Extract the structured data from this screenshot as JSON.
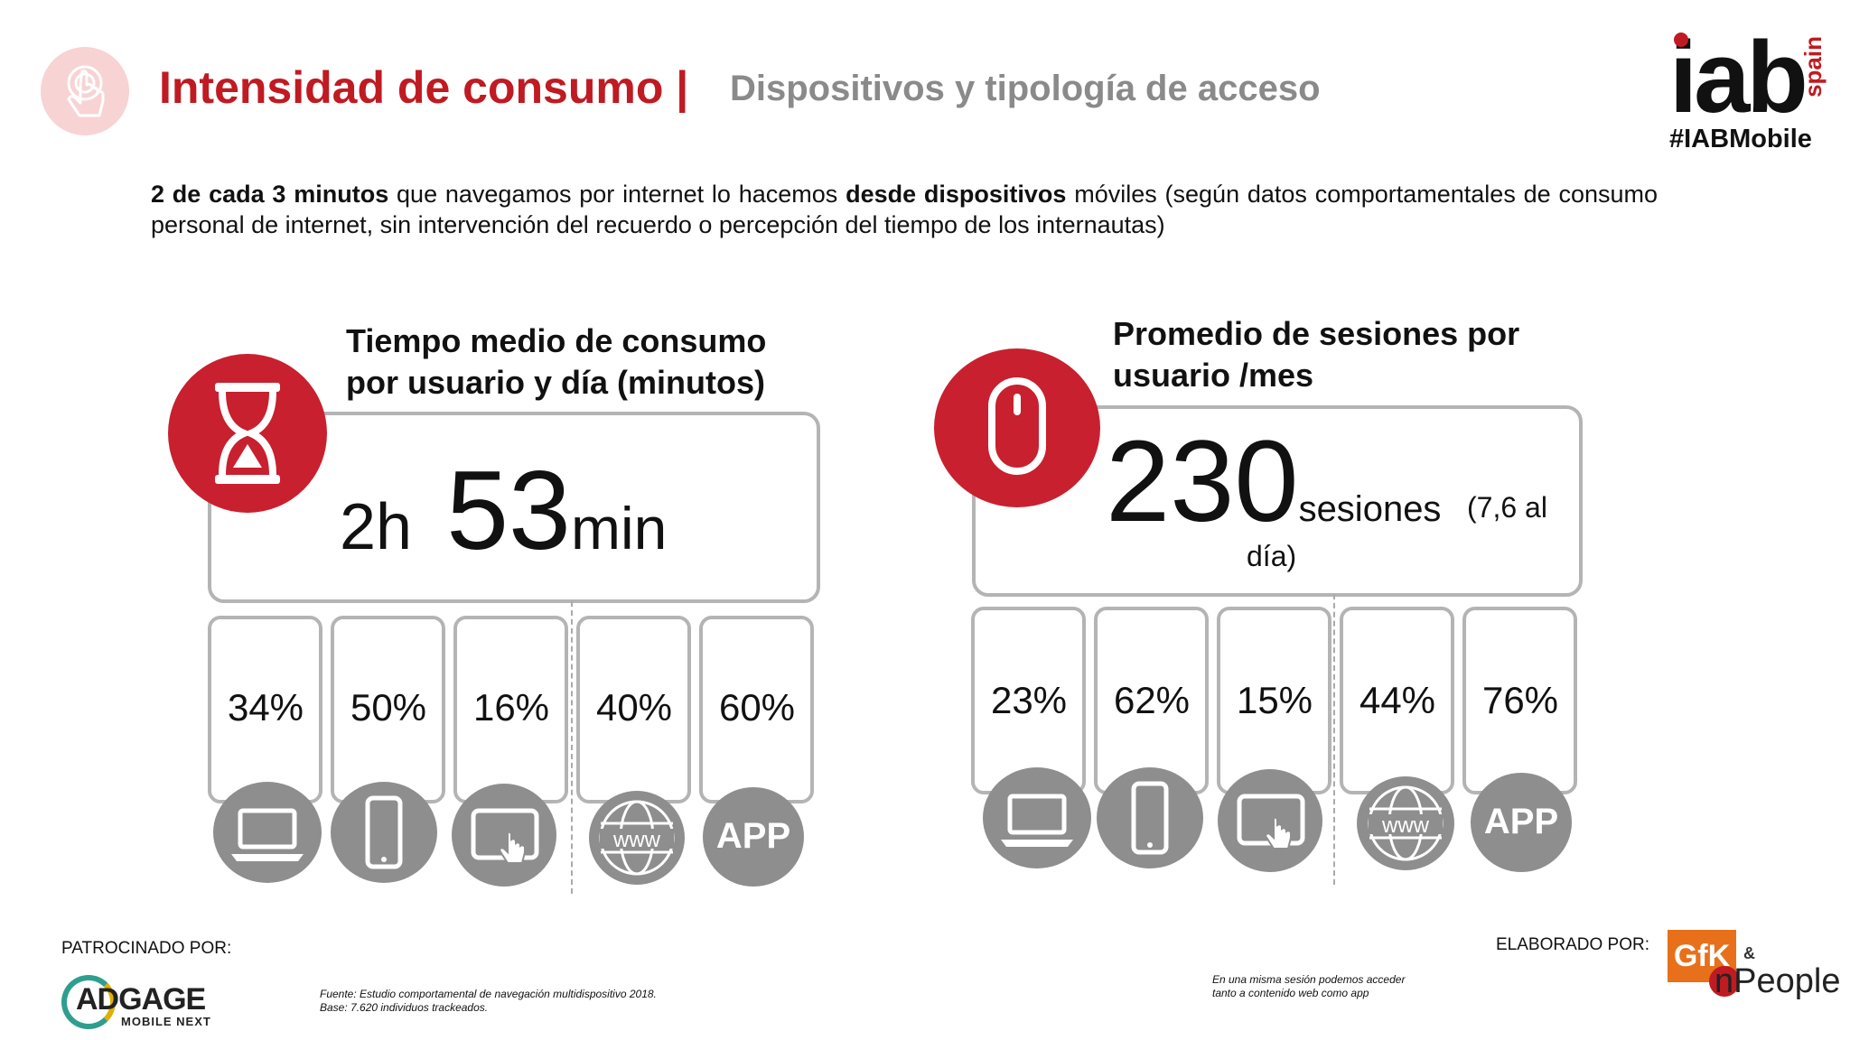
{
  "header": {
    "title_main": "Intensidad de consumo |",
    "title_sub": "Dispositivos y tipología de acceso",
    "brand_letters": "iab",
    "brand_region": "spain",
    "hashtag": "#IABMobile"
  },
  "intro": {
    "p1_bold": "2 de cada 3 minutos",
    "p2": " que navegamos por internet lo hacemos ",
    "p3_bold": "desde dispositivos",
    "p4": " móviles (según datos comportamentales de consumo personal de internet, sin intervención del recuerdo o percepción del tiempo de los internautas)"
  },
  "left_panel": {
    "heading_line1": "Tiempo medio de consumo",
    "heading_line2": "por usuario y día (minutos)",
    "hours": "2h",
    "minutes": "53",
    "minutes_unit": "min",
    "devices": [
      {
        "percent": "34%",
        "icon": "laptop-icon"
      },
      {
        "percent": "50%",
        "icon": "smartphone-icon"
      },
      {
        "percent": "16%",
        "icon": "tablet-icon"
      },
      {
        "percent": "40%",
        "icon": "www-globe-icon"
      },
      {
        "percent": "60%",
        "icon": "app-icon",
        "icon_text": "APP"
      }
    ]
  },
  "right_panel": {
    "heading_line1": "Promedio de sesiones por",
    "heading_line2": "usuario /mes",
    "sessions": "230",
    "sessions_unit": "sesiones",
    "per_day_a": "(7,6 al",
    "per_day_b": "día)",
    "devices": [
      {
        "percent": "23%",
        "icon": "laptop-icon"
      },
      {
        "percent": "62%",
        "icon": "smartphone-icon"
      },
      {
        "percent": "15%",
        "icon": "tablet-icon"
      },
      {
        "percent": "44%",
        "icon": "www-globe-icon"
      },
      {
        "percent": "76%",
        "icon": "app-icon",
        "icon_text": "APP"
      }
    ]
  },
  "footer": {
    "sponsor_label": "PATROCINADO POR:",
    "sponsor_name": "ADGAGE",
    "sponsor_tag": "MOBILE NEXT",
    "source_line1": "Fuente: Estudio comportamental de navegación multidispositivo 2018.",
    "source_line2": "Base: 7.620 individuos trackeados.",
    "note_line1": "En una misma sesión podemos acceder",
    "note_line2": "tanto a contenido web como app",
    "made_by_label": "ELABORADO POR:",
    "partner_a": "GfK",
    "partner_amp": "&",
    "partner_b": "nPeople"
  },
  "colors": {
    "accent": "#c01a22",
    "circle_red": "#c8202f",
    "icon_gray": "#8e8e8e",
    "border_gray": "#b4b4b4"
  }
}
